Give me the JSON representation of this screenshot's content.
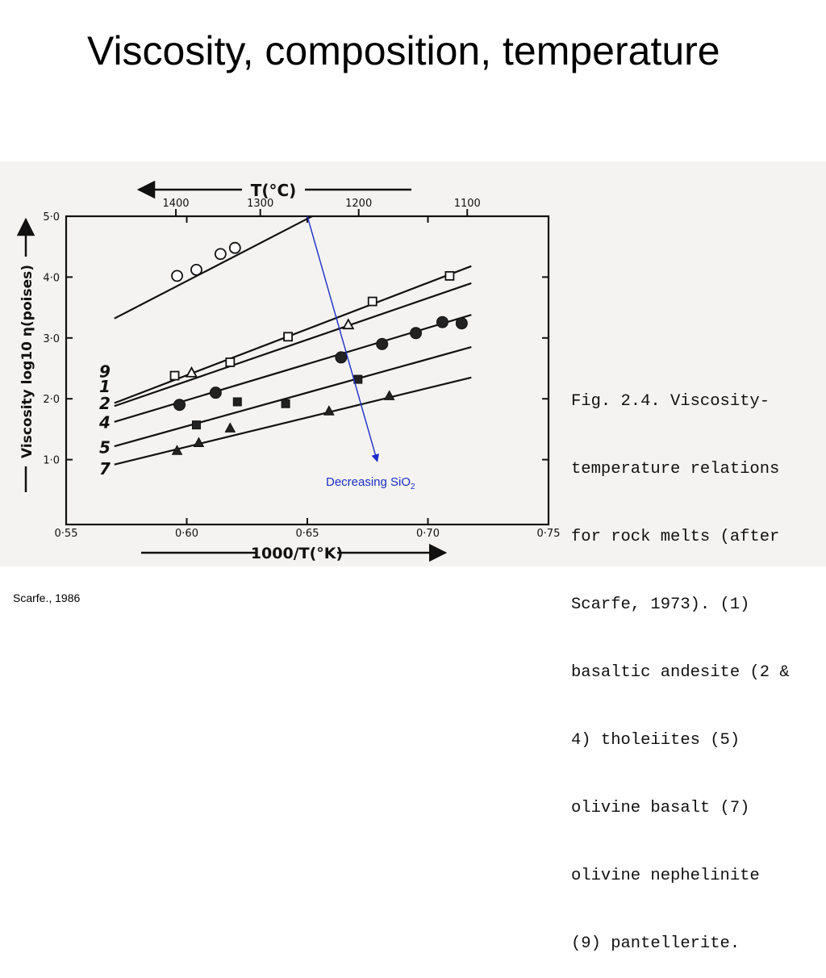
{
  "slide": {
    "title": "Viscosity, composition, temperature",
    "credit": "Scarfe., 1986"
  },
  "caption": {
    "lines": [
      "Fig. 2.4. Viscosity-",
      "temperature relations",
      "for rock melts (after",
      "Scarfe, 1973). (1)",
      "basaltic andesite (2 &",
      "4) tholeiites (5)",
      "olivine basalt (7)",
      "olivine nephelinite",
      "(9) pantellerite."
    ]
  },
  "annotation": {
    "text": "Decreasing SiO",
    "subscript": "2",
    "color": "#1a2dc8"
  },
  "chart_data": {
    "type": "scatter",
    "xlabel": "1000/T(°K)",
    "x_top_label": "T(°C)",
    "ylabel": "Viscosity log10 η(poises)",
    "xlim": [
      0.55,
      0.75
    ],
    "ylim": [
      0.0,
      5.0
    ],
    "x_ticks": [
      {
        "value": 0.55,
        "label": "0·55"
      },
      {
        "value": 0.6,
        "label": "0·60"
      },
      {
        "value": 0.65,
        "label": "0·65"
      },
      {
        "value": 0.7,
        "label": "0·70"
      },
      {
        "value": 0.75,
        "label": "0·75"
      }
    ],
    "y_ticks": [
      {
        "value": 1.0,
        "label": "1·0"
      },
      {
        "value": 2.0,
        "label": "2·0"
      },
      {
        "value": 3.0,
        "label": "3·0"
      },
      {
        "value": 4.0,
        "label": "4·0"
      },
      {
        "value": 5.0,
        "label": "5·0"
      }
    ],
    "top_ticks": [
      {
        "x": 0.5955,
        "label": "1400"
      },
      {
        "x": 0.6305,
        "label": "1300"
      },
      {
        "x": 0.6713,
        "label": "1200"
      },
      {
        "x": 0.7163,
        "label": "1100"
      }
    ],
    "series": [
      {
        "name": "9",
        "marker": "open-circle",
        "line": {
          "x1": 0.57,
          "y1": 3.32,
          "x2": 0.652,
          "y2": 5.0
        },
        "points": [
          [
            0.596,
            4.02
          ],
          [
            0.604,
            4.12
          ],
          [
            0.614,
            4.38
          ],
          [
            0.62,
            4.48
          ]
        ]
      },
      {
        "name": "1",
        "marker": "open-square",
        "line": {
          "x1": 0.57,
          "y1": 1.93,
          "x2": 0.718,
          "y2": 4.18
        },
        "points": [
          [
            0.595,
            2.38
          ],
          [
            0.618,
            2.6
          ],
          [
            0.642,
            3.02
          ],
          [
            0.677,
            3.6
          ],
          [
            0.709,
            4.02
          ]
        ]
      },
      {
        "name": "2",
        "marker": "open-triangle",
        "line": {
          "x1": 0.57,
          "y1": 1.88,
          "x2": 0.718,
          "y2": 3.9
        },
        "points": [
          [
            0.602,
            2.43
          ],
          [
            0.667,
            3.22
          ]
        ]
      },
      {
        "name": "4",
        "marker": "filled-circle",
        "line": {
          "x1": 0.57,
          "y1": 1.62,
          "x2": 0.718,
          "y2": 3.38
        },
        "points": [
          [
            0.597,
            1.9
          ],
          [
            0.612,
            2.1
          ],
          [
            0.664,
            2.68
          ],
          [
            0.681,
            2.9
          ],
          [
            0.695,
            3.08
          ],
          [
            0.706,
            3.26
          ],
          [
            0.714,
            3.24
          ]
        ]
      },
      {
        "name": "5",
        "marker": "filled-square",
        "line": {
          "x1": 0.57,
          "y1": 1.22,
          "x2": 0.718,
          "y2": 2.85
        },
        "points": [
          [
            0.604,
            1.57
          ],
          [
            0.621,
            1.95
          ],
          [
            0.641,
            1.92
          ],
          [
            0.671,
            2.32
          ]
        ]
      },
      {
        "name": "7",
        "marker": "filled-triangle",
        "line": {
          "x1": 0.57,
          "y1": 0.92,
          "x2": 0.718,
          "y2": 2.35
        },
        "points": [
          [
            0.596,
            1.15
          ],
          [
            0.605,
            1.28
          ],
          [
            0.618,
            1.52
          ],
          [
            0.659,
            1.8
          ],
          [
            0.684,
            2.05
          ]
        ]
      }
    ],
    "series_labels": [
      {
        "name": "9",
        "y": 2.45
      },
      {
        "name": "1",
        "y": 2.2
      },
      {
        "name": "2",
        "y": 1.92
      },
      {
        "name": "4",
        "y": 1.61
      },
      {
        "name": "5",
        "y": 1.2
      },
      {
        "name": "7",
        "y": 0.85
      }
    ],
    "arrow": {
      "x1": 0.65,
      "y1": 5.0,
      "x2": 0.679,
      "y2": 0.97
    }
  }
}
